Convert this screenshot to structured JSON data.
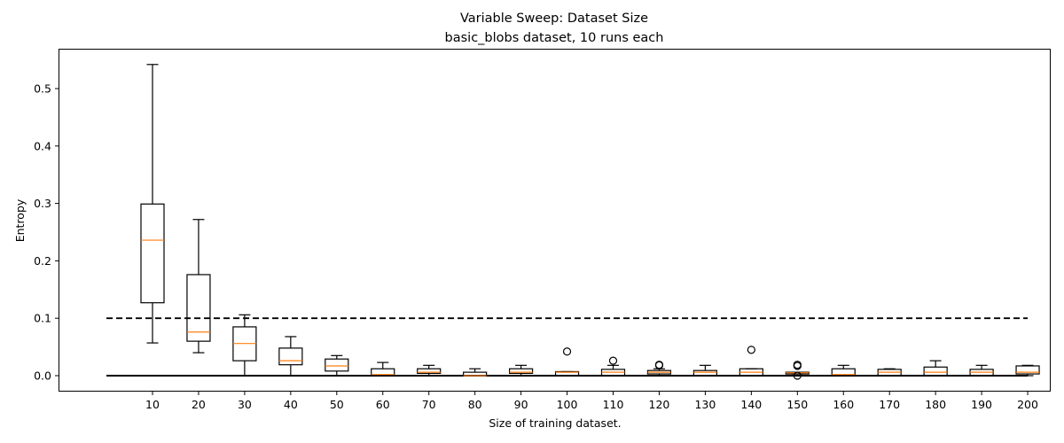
{
  "chart_data": {
    "type": "boxplot",
    "title": "Variable Sweep: Dataset Size",
    "subtitle": "basic_blobs dataset, 10 runs each",
    "xlabel": "Size of training dataset.",
    "ylabel": "Entropy",
    "ylim": [
      -0.028,
      0.57
    ],
    "yticks": [
      0.0,
      0.1,
      0.2,
      0.3,
      0.4,
      0.5
    ],
    "ytick_labels": [
      "0.0",
      "0.1",
      "0.2",
      "0.3",
      "0.4",
      "0.5"
    ],
    "grid": false,
    "categories": [
      "10",
      "20",
      "30",
      "40",
      "50",
      "60",
      "70",
      "80",
      "90",
      "100",
      "110",
      "120",
      "130",
      "140",
      "150",
      "160",
      "170",
      "180",
      "190",
      "200"
    ],
    "boxes": [
      {
        "whislo": 0.057,
        "q1": 0.127,
        "med": 0.236,
        "q3": 0.299,
        "whishi": 0.542,
        "fliers": []
      },
      {
        "whislo": 0.04,
        "q1": 0.06,
        "med": 0.076,
        "q3": 0.176,
        "whishi": 0.272,
        "fliers": []
      },
      {
        "whislo": 0.0,
        "q1": 0.026,
        "med": 0.056,
        "q3": 0.085,
        "whishi": 0.106,
        "fliers": []
      },
      {
        "whislo": 0.0,
        "q1": 0.019,
        "med": 0.026,
        "q3": 0.048,
        "whishi": 0.068,
        "fliers": []
      },
      {
        "whislo": 0.0,
        "q1": 0.008,
        "med": 0.017,
        "q3": 0.029,
        "whishi": 0.035,
        "fliers": []
      },
      {
        "whislo": 0.0,
        "q1": 0.0,
        "med": 0.002,
        "q3": 0.012,
        "whishi": 0.023,
        "fliers": []
      },
      {
        "whislo": 0.0,
        "q1": 0.004,
        "med": 0.006,
        "q3": 0.012,
        "whishi": 0.018,
        "fliers": []
      },
      {
        "whislo": 0.0,
        "q1": 0.0,
        "med": 0.0,
        "q3": 0.006,
        "whishi": 0.012,
        "fliers": []
      },
      {
        "whislo": 0.0,
        "q1": 0.004,
        "med": 0.006,
        "q3": 0.012,
        "whishi": 0.018,
        "fliers": []
      },
      {
        "whislo": 0.0,
        "q1": 0.0,
        "med": 0.006,
        "q3": 0.007,
        "whishi": 0.007,
        "fliers": [
          0.042
        ]
      },
      {
        "whislo": 0.0,
        "q1": 0.0,
        "med": 0.006,
        "q3": 0.011,
        "whishi": 0.018,
        "fliers": [
          0.026
        ]
      },
      {
        "whislo": 0.0,
        "q1": 0.003,
        "med": 0.006,
        "q3": 0.009,
        "whishi": 0.012,
        "fliers": [
          0.019,
          0.018
        ]
      },
      {
        "whislo": 0.0,
        "q1": 0.0,
        "med": 0.006,
        "q3": 0.009,
        "whishi": 0.018,
        "fliers": []
      },
      {
        "whislo": 0.0,
        "q1": 0.0,
        "med": 0.006,
        "q3": 0.012,
        "whishi": 0.012,
        "fliers": [
          0.045
        ]
      },
      {
        "whislo": 0.003,
        "q1": 0.003,
        "med": 0.005,
        "q3": 0.006,
        "whishi": 0.006,
        "fliers": [
          0.019,
          0.017,
          0.0
        ]
      },
      {
        "whislo": 0.0,
        "q1": 0.0,
        "med": 0.002,
        "q3": 0.012,
        "whishi": 0.018,
        "fliers": []
      },
      {
        "whislo": 0.0,
        "q1": 0.0,
        "med": 0.006,
        "q3": 0.011,
        "whishi": 0.012,
        "fliers": []
      },
      {
        "whislo": 0.0,
        "q1": 0.0,
        "med": 0.006,
        "q3": 0.015,
        "whishi": 0.026,
        "fliers": []
      },
      {
        "whislo": 0.0,
        "q1": 0.0,
        "med": 0.006,
        "q3": 0.011,
        "whishi": 0.018,
        "fliers": []
      },
      {
        "whislo": 0.0,
        "q1": 0.003,
        "med": 0.006,
        "q3": 0.017,
        "whishi": 0.018,
        "fliers": []
      }
    ],
    "reference_lines": [
      {
        "name": "threshold",
        "y": 0.1,
        "style": "dashed",
        "color": "#000000",
        "x_from": 0,
        "x_to": 200
      },
      {
        "name": "zero",
        "y": 0.0,
        "style": "solid",
        "color": "#000000",
        "x_from": 0,
        "x_to": 200
      }
    ],
    "colors": {
      "box": "#000000",
      "median": "#ff7f0e",
      "flier": "#000000"
    }
  }
}
